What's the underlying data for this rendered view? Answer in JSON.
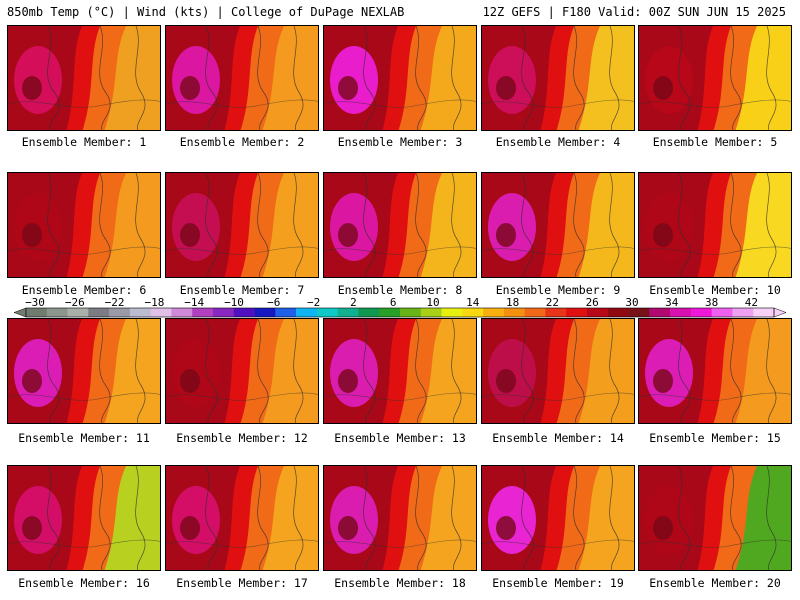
{
  "header": {
    "left": "850mb Temp (°C) | Wind (kts) | College of DuPage NEXLAB",
    "right": "12Z GEFS | F180 Valid: 00Z SUN JUN 15 2025"
  },
  "members": [
    {
      "label": "Ensemble Member: 1",
      "east": "#f0a020",
      "hot": "#d81060"
    },
    {
      "label": "Ensemble Member: 2",
      "east": "#f49a1e",
      "hot": "#e018b0"
    },
    {
      "label": "Ensemble Member: 3",
      "east": "#f4a81c",
      "hot": "#f020e0"
    },
    {
      "label": "Ensemble Member: 4",
      "east": "#f4c020",
      "hot": "#d01060"
    },
    {
      "label": "Ensemble Member: 5",
      "east": "#f8d018",
      "hot": "#b80818"
    },
    {
      "label": "Ensemble Member: 6",
      "east": "#f49a1e",
      "hot": "#b00818"
    },
    {
      "label": "Ensemble Member: 7",
      "east": "#f4a01e",
      "hot": "#c81058"
    },
    {
      "label": "Ensemble Member: 8",
      "east": "#f4b41c",
      "hot": "#e018b0"
    },
    {
      "label": "Ensemble Member: 9",
      "east": "#f4b81c",
      "hot": "#e020c0"
    },
    {
      "label": "Ensemble Member: 10",
      "east": "#f8d820",
      "hot": "#b00818"
    },
    {
      "label": "Ensemble Member: 11",
      "east": "#f4a41e",
      "hot": "#e020c8"
    },
    {
      "label": "Ensemble Member: 12",
      "east": "#f49a1e",
      "hot": "#b00818"
    },
    {
      "label": "Ensemble Member: 13",
      "east": "#f4a41e",
      "hot": "#e020c0"
    },
    {
      "label": "Ensemble Member: 14",
      "east": "#f49e1e",
      "hot": "#c01050"
    },
    {
      "label": "Ensemble Member: 15",
      "east": "#f49a1e",
      "hot": "#e020c8"
    },
    {
      "label": "Ensemble Member: 16",
      "east": "#b8d020",
      "hot": "#d81070"
    },
    {
      "label": "Ensemble Member: 17",
      "east": "#f4a41e",
      "hot": "#d81070"
    },
    {
      "label": "Ensemble Member: 18",
      "east": "#f4a41e",
      "hot": "#e020c0"
    },
    {
      "label": "Ensemble Member: 19",
      "east": "#f4a41e",
      "hot": "#f028e8"
    },
    {
      "label": "Ensemble Member: 20",
      "east": "#50a820",
      "hot": "#b00818"
    }
  ],
  "colorbar": {
    "labels": [
      "−30",
      "−26",
      "−22",
      "−18",
      "−14",
      "−10",
      "−6",
      "−2",
      "2",
      "6",
      "10",
      "14",
      "18",
      "22",
      "26",
      "30",
      "34",
      "38",
      "42"
    ],
    "colors": [
      "#707c70",
      "#8c968c",
      "#a8b0a8",
      "#7c7c84",
      "#9a9aa6",
      "#bcbcd0",
      "#e0c0e8",
      "#d088d8",
      "#b040c0",
      "#8828c0",
      "#5010c0",
      "#1818c0",
      "#2060e8",
      "#10b4f0",
      "#10c8c8",
      "#10b090",
      "#109850",
      "#28a028",
      "#68b418",
      "#a8d018",
      "#e8f010",
      "#f8d810",
      "#f8b010",
      "#f49010",
      "#f06818",
      "#e83418",
      "#e01010",
      "#b80818",
      "#900810",
      "#781018",
      "#b00870",
      "#d810b0",
      "#f018d8",
      "#f060f0",
      "#f0a0f0",
      "#f8d0f8"
    ]
  }
}
